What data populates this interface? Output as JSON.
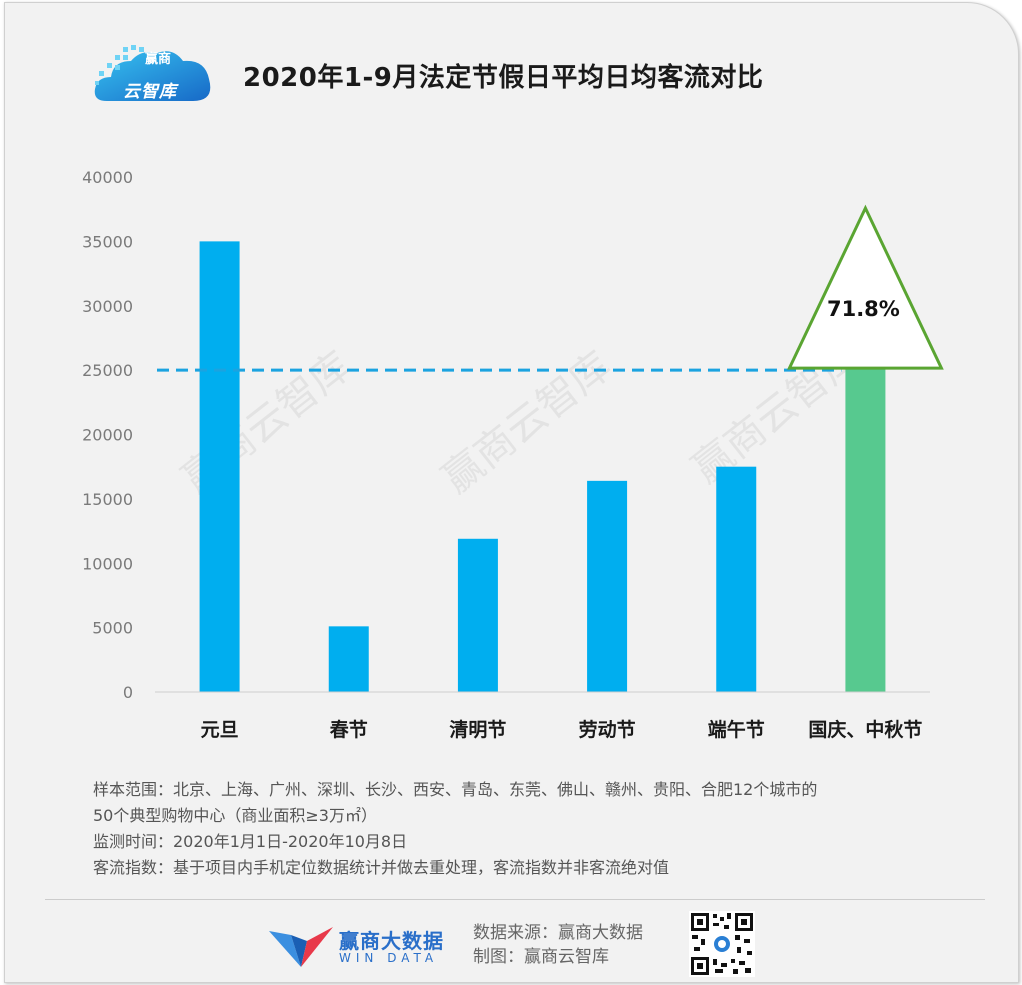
{
  "logo": {
    "text": "云智库",
    "top_text": "赢商"
  },
  "title": "2020年1-9月法定节假日平均日均客流对比",
  "chart_data": {
    "type": "bar",
    "categories": [
      "元旦",
      "春节",
      "清明节",
      "劳动节",
      "端午节",
      "国庆、中秋节"
    ],
    "values": [
      35000,
      5100,
      11900,
      16400,
      17500,
      25100
    ],
    "ylim": [
      0,
      40000
    ],
    "yticks": [
      "0",
      "5000",
      "10000",
      "15000",
      "20000",
      "25000",
      "30000",
      "35000",
      "40000"
    ],
    "reference_line": 25000,
    "annotation": "71.8%",
    "colors": {
      "default": "#00aeef",
      "highlight": "#57c98f",
      "reference": "#1ba3e0",
      "triangle": "#5aa532"
    },
    "grid": false
  },
  "watermark": "赢商云智库",
  "notes": [
    "样本范围：北京、上海、广州、深圳、长沙、西安、青岛、东莞、佛山、赣州、贵阳、合肥12个城市的",
    "50个典型购物中心（商业面积≥3万㎡）",
    "监测时间：2020年1月1日-2020年10月8日",
    "客流指数：基于项目内手机定位数据统计并做去重处理，客流指数并非客流绝对值"
  ],
  "footer": {
    "brand_name": "赢商大数据",
    "brand_en": "WIN DATA",
    "source_line": "数据来源：赢商大数据",
    "maker_line": "制图：赢商云智库"
  }
}
